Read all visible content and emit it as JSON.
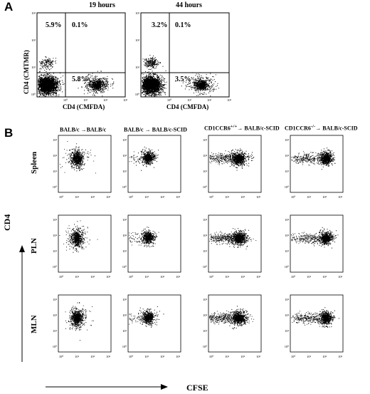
{
  "panel_a": {
    "letter": "A",
    "plots": [
      {
        "time": "19 hours",
        "q_ul": "5.9%",
        "q_ur": "0.1%",
        "q_lr": "5.8%",
        "xlabel": "CD4 (CMFDA)",
        "ylabel": "CD4 (CMTMR)"
      },
      {
        "time": "44 hours",
        "q_ul": "3.2%",
        "q_ur": "0.1%",
        "q_lr": "3.5%",
        "xlabel": "CD4 (CMFDA)"
      }
    ]
  },
  "panel_b": {
    "letter": "B",
    "columns": [
      {
        "pre": "BALB/c ",
        "sup": "",
        "post": "→BALB/c"
      },
      {
        "pre": "BALB/c ",
        "sup": "",
        "post": "→ BALB/c-SCID"
      },
      {
        "pre": "CD1CCR6",
        "sup": "+/+",
        "post": "→ BALB/c-SCID"
      },
      {
        "pre": "CD1CCR6",
        "sup": "-/-",
        "post": "→ BALB/c-SCID"
      }
    ],
    "rows": [
      "Spleen",
      "PLN",
      "MLN"
    ],
    "y_axis_label": "CD4",
    "x_axis_label": "CFSE"
  },
  "tick_labels": {
    "decades": [
      "10⁰",
      "10¹",
      "10²",
      "10³"
    ]
  }
}
